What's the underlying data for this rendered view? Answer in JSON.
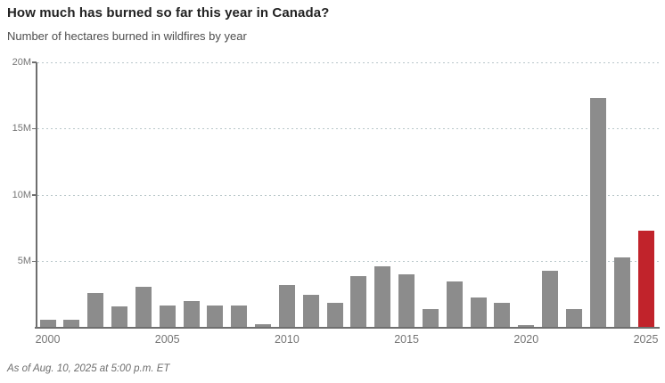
{
  "header": {
    "title": "How much has burned so far this year in Canada?",
    "subtitle": "Number of hectares burned in wildfires by year"
  },
  "footer": {
    "note": "As of Aug. 10, 2025 at 5:00 p.m. ET"
  },
  "colors": {
    "bar": "#8c8c8c",
    "highlight": "#c1232b",
    "axis": "#6e6e6e",
    "gridline": "#b9c7ca",
    "tick_label": "#757575",
    "title": "#222222",
    "subtitle": "#4d4d4d"
  },
  "chart_data": {
    "type": "bar",
    "title": "How much has burned so far this year in Canada?",
    "subtitle": "Number of hectares burned in wildfires by year",
    "unit": "millions of hectares",
    "categories": [
      2000,
      2001,
      2002,
      2003,
      2004,
      2005,
      2006,
      2007,
      2008,
      2009,
      2010,
      2011,
      2012,
      2013,
      2014,
      2015,
      2016,
      2017,
      2018,
      2019,
      2020,
      2021,
      2022,
      2023,
      2024,
      2025
    ],
    "values": [
      0.6,
      0.6,
      2.6,
      1.6,
      3.1,
      1.7,
      2.0,
      1.7,
      1.7,
      0.3,
      3.2,
      2.5,
      1.9,
      3.9,
      4.6,
      4.0,
      1.4,
      3.5,
      2.3,
      1.9,
      0.2,
      4.3,
      1.4,
      17.3,
      5.3,
      7.3
    ],
    "highlight_index": 25,
    "ylim": [
      0,
      20
    ],
    "yticks": [
      5,
      10,
      15,
      20
    ],
    "ytick_labels": [
      "5M",
      "10M",
      "15M",
      "20M"
    ],
    "xticks": [
      2000,
      2005,
      2010,
      2015,
      2020,
      2025
    ],
    "legend": "none",
    "grid": "horizontal-dashed",
    "annotation": "2025 bar highlighted in red (year to date)"
  }
}
